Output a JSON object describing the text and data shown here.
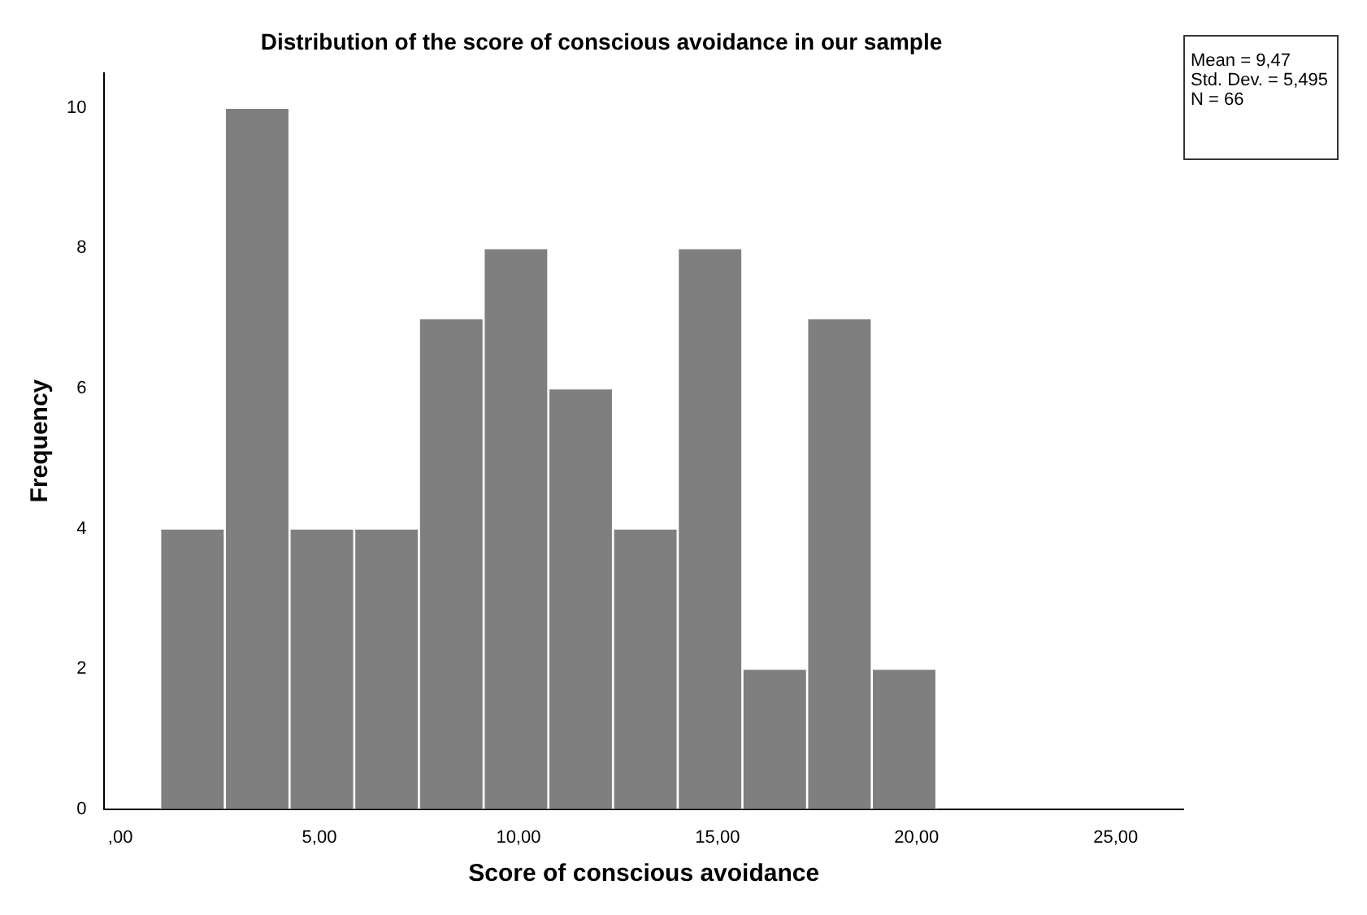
{
  "chart_data": {
    "type": "histogram",
    "title": "Distribution of the score of conscious avoidance in our sample",
    "xlabel": "Score of conscious avoidance",
    "ylabel": "Frequency",
    "bins": [
      1,
      2.625,
      4.25,
      5.875,
      7.5,
      9.125,
      10.75,
      12.375,
      14,
      15.625,
      17.25,
      18.875,
      20.5
    ],
    "values": [
      4,
      10,
      4,
      4,
      7,
      8,
      6,
      4,
      8,
      2,
      7,
      2
    ],
    "color": "#7f7f7f",
    "xlim": [
      -0.4,
      26.7
    ],
    "xticks": [
      {
        "value": 0,
        "label": ",00"
      },
      {
        "value": 5,
        "label": "5,00"
      },
      {
        "value": 10,
        "label": "10,00"
      },
      {
        "value": 15,
        "label": "15,00"
      },
      {
        "value": 20,
        "label": "20,00"
      },
      {
        "value": 25,
        "label": "25,00"
      }
    ],
    "ylim": [
      0,
      10.5
    ],
    "yticks": [
      0,
      2,
      4,
      6,
      8,
      10
    ],
    "annotations": [
      "Mean = 9,47",
      "Std. Dev. = 5,495",
      "N = 66"
    ],
    "legend": false
  }
}
